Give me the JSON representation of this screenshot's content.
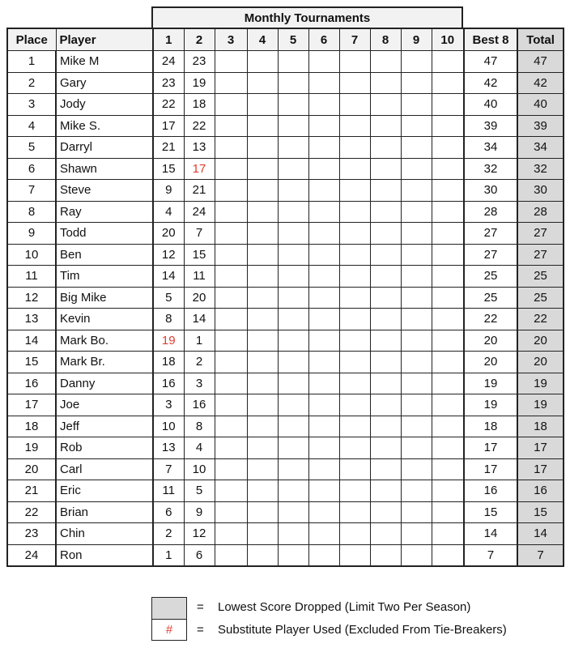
{
  "header": {
    "monthly_tournaments": "Monthly Tournaments"
  },
  "columns": {
    "place": "Place",
    "player": "Player",
    "months": [
      "1",
      "2",
      "3",
      "4",
      "5",
      "6",
      "7",
      "8",
      "9",
      "10"
    ],
    "best8": "Best 8",
    "total": "Total"
  },
  "rows": [
    {
      "place": "1",
      "player": "Mike M",
      "scores": [
        "24",
        "23"
      ],
      "best8": "47",
      "total": "47",
      "substitute_months": []
    },
    {
      "place": "2",
      "player": "Gary",
      "scores": [
        "23",
        "19"
      ],
      "best8": "42",
      "total": "42",
      "substitute_months": []
    },
    {
      "place": "3",
      "player": "Jody",
      "scores": [
        "22",
        "18"
      ],
      "best8": "40",
      "total": "40",
      "substitute_months": []
    },
    {
      "place": "4",
      "player": "Mike S.",
      "scores": [
        "17",
        "22"
      ],
      "best8": "39",
      "total": "39",
      "substitute_months": []
    },
    {
      "place": "5",
      "player": "Darryl",
      "scores": [
        "21",
        "13"
      ],
      "best8": "34",
      "total": "34",
      "substitute_months": []
    },
    {
      "place": "6",
      "player": "Shawn",
      "scores": [
        "15",
        "17"
      ],
      "best8": "32",
      "total": "32",
      "substitute_months": [
        2
      ]
    },
    {
      "place": "7",
      "player": "Steve",
      "scores": [
        "9",
        "21"
      ],
      "best8": "30",
      "total": "30",
      "substitute_months": []
    },
    {
      "place": "8",
      "player": "Ray",
      "scores": [
        "4",
        "24"
      ],
      "best8": "28",
      "total": "28",
      "substitute_months": []
    },
    {
      "place": "9",
      "player": "Todd",
      "scores": [
        "20",
        "7"
      ],
      "best8": "27",
      "total": "27",
      "substitute_months": []
    },
    {
      "place": "10",
      "player": "Ben",
      "scores": [
        "12",
        "15"
      ],
      "best8": "27",
      "total": "27",
      "substitute_months": []
    },
    {
      "place": "11",
      "player": "Tim",
      "scores": [
        "14",
        "11"
      ],
      "best8": "25",
      "total": "25",
      "substitute_months": []
    },
    {
      "place": "12",
      "player": "Big Mike",
      "scores": [
        "5",
        "20"
      ],
      "best8": "25",
      "total": "25",
      "substitute_months": []
    },
    {
      "place": "13",
      "player": "Kevin",
      "scores": [
        "8",
        "14"
      ],
      "best8": "22",
      "total": "22",
      "substitute_months": []
    },
    {
      "place": "14",
      "player": "Mark Bo.",
      "scores": [
        "19",
        "1"
      ],
      "best8": "20",
      "total": "20",
      "substitute_months": [
        1
      ]
    },
    {
      "place": "15",
      "player": "Mark Br.",
      "scores": [
        "18",
        "2"
      ],
      "best8": "20",
      "total": "20",
      "substitute_months": []
    },
    {
      "place": "16",
      "player": "Danny",
      "scores": [
        "16",
        "3"
      ],
      "best8": "19",
      "total": "19",
      "substitute_months": []
    },
    {
      "place": "17",
      "player": "Joe",
      "scores": [
        "3",
        "16"
      ],
      "best8": "19",
      "total": "19",
      "substitute_months": []
    },
    {
      "place": "18",
      "player": "Jeff",
      "scores": [
        "10",
        "8"
      ],
      "best8": "18",
      "total": "18",
      "substitute_months": []
    },
    {
      "place": "19",
      "player": "Rob",
      "scores": [
        "13",
        "4"
      ],
      "best8": "17",
      "total": "17",
      "substitute_months": []
    },
    {
      "place": "20",
      "player": "Carl",
      "scores": [
        "7",
        "10"
      ],
      "best8": "17",
      "total": "17",
      "substitute_months": []
    },
    {
      "place": "21",
      "player": "Eric",
      "scores": [
        "11",
        "5"
      ],
      "best8": "16",
      "total": "16",
      "substitute_months": []
    },
    {
      "place": "22",
      "player": "Brian",
      "scores": [
        "6",
        "9"
      ],
      "best8": "15",
      "total": "15",
      "substitute_months": []
    },
    {
      "place": "23",
      "player": "Chin",
      "scores": [
        "2",
        "12"
      ],
      "best8": "14",
      "total": "14",
      "substitute_months": []
    },
    {
      "place": "24",
      "player": "Ron",
      "scores": [
        "1",
        "6"
      ],
      "best8": "7",
      "total": "7",
      "substitute_months": []
    }
  ],
  "legend": {
    "equals": "=",
    "dropped_label": "Lowest Score Dropped (Limit Two Per Season)",
    "substitute_symbol": "#",
    "substitute_label": "Substitute Player Used (Excluded From Tie-Breakers)"
  },
  "colors": {
    "dropped_fill": "#d9d9d9",
    "substitute_text": "#e03c31",
    "header_fill": "#f2f2f2"
  }
}
